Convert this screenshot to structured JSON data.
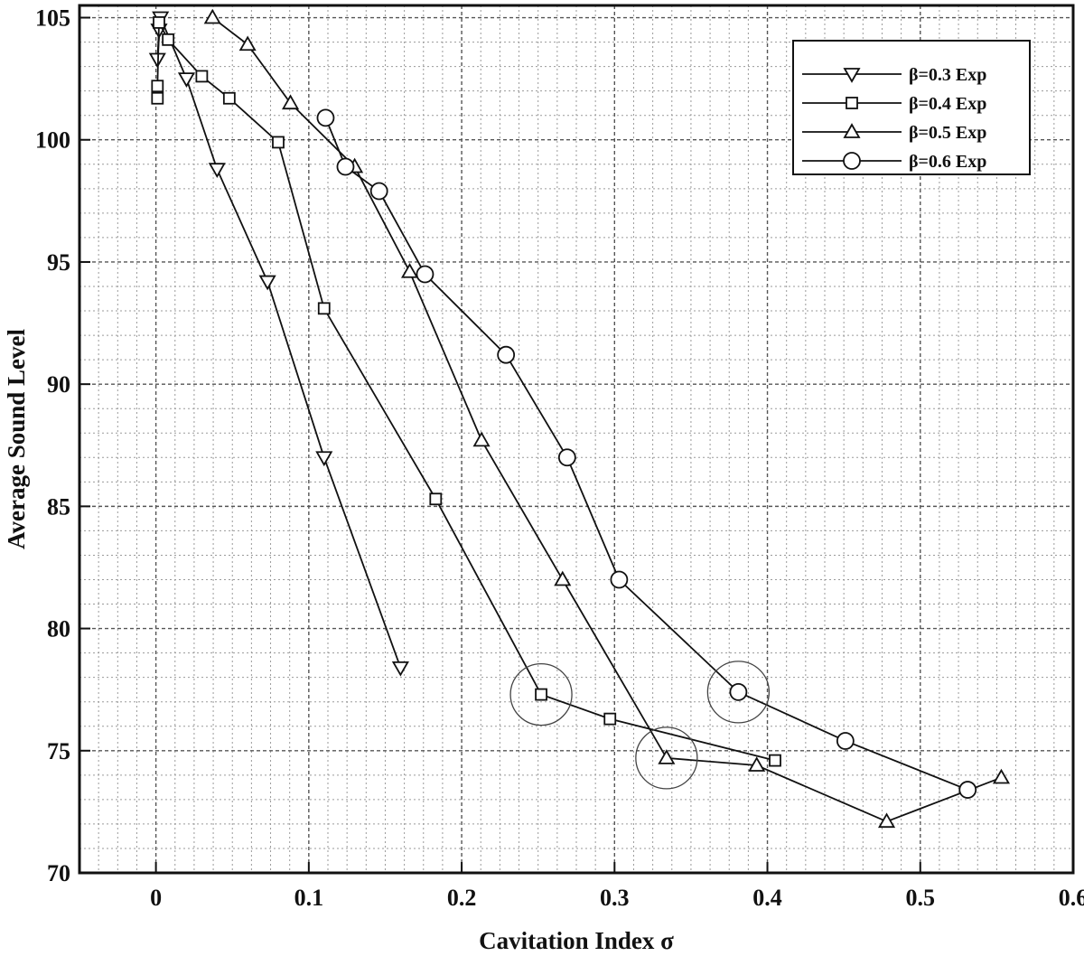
{
  "chart_data": {
    "type": "line",
    "title": "",
    "xlabel": "Cavitation Index σ",
    "ylabel": "Average Sound Level",
    "xlim": [
      -0.05,
      0.6
    ],
    "ylim": [
      70,
      105.5
    ],
    "xticks": [
      0,
      0.1,
      0.2,
      0.3,
      0.4,
      0.5,
      0.6
    ],
    "xtick_labels": [
      "0",
      "0.1",
      "0.2",
      "0.3",
      "0.4",
      "0.5",
      "0.6"
    ],
    "yticks": [
      70,
      75,
      80,
      85,
      90,
      95,
      100,
      105
    ],
    "ytick_labels": [
      "70",
      "75",
      "80",
      "85",
      "90",
      "95",
      "100",
      "105"
    ],
    "grid": "dashed major and minor",
    "legend_position": "top-right",
    "series": [
      {
        "name": "β=0.3 Exp",
        "marker": "triangle-down",
        "x": [
          0.002,
          0.001,
          0.003,
          0.02,
          0.04,
          0.073,
          0.11,
          0.16
        ],
        "y": [
          104.5,
          103.3,
          105.0,
          102.5,
          98.8,
          94.2,
          87.0,
          78.4
        ]
      },
      {
        "name": "β=0.4 Exp",
        "marker": "square",
        "x": [
          0.001,
          0.001,
          0.002,
          0.008,
          0.03,
          0.048,
          0.08,
          0.11,
          0.183,
          0.252,
          0.297,
          0.405
        ],
        "y": [
          101.7,
          102.2,
          104.8,
          104.1,
          102.6,
          101.7,
          99.9,
          93.1,
          85.3,
          77.3,
          76.3,
          74.6
        ]
      },
      {
        "name": "β=0.5 Exp",
        "marker": "triangle-up",
        "x": [
          0.037,
          0.06,
          0.088,
          0.13,
          0.166,
          0.213,
          0.266,
          0.334,
          0.393,
          0.478,
          0.553
        ],
        "y": [
          105.0,
          103.9,
          101.5,
          98.9,
          94.6,
          87.7,
          82.0,
          74.7,
          74.4,
          72.1,
          73.9
        ]
      },
      {
        "name": "β=0.6 Exp",
        "marker": "circle",
        "x": [
          0.111,
          0.124,
          0.146,
          0.176,
          0.229,
          0.269,
          0.303,
          0.381,
          0.451,
          0.531
        ],
        "y": [
          100.9,
          98.9,
          97.9,
          94.5,
          91.2,
          87.0,
          82.0,
          77.4,
          75.4,
          73.4
        ]
      }
    ],
    "highlight_circles": [
      {
        "x": 0.252,
        "y": 77.3
      },
      {
        "x": 0.334,
        "y": 74.7
      },
      {
        "x": 0.381,
        "y": 77.4
      }
    ]
  }
}
